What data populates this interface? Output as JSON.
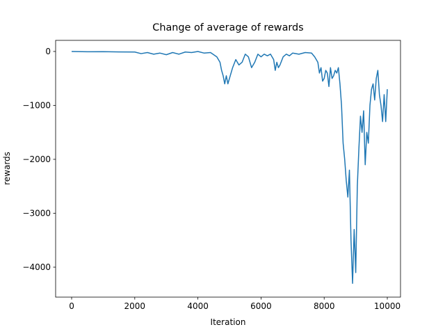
{
  "chart_data": {
    "type": "line",
    "title": "Change of average of rewards",
    "xlabel": "Iteration",
    "ylabel": "rewards",
    "x": [
      0,
      500,
      1000,
      1500,
      2000,
      2200,
      2400,
      2600,
      2800,
      3000,
      3200,
      3400,
      3600,
      3800,
      4000,
      4200,
      4400,
      4500,
      4600,
      4700,
      4750,
      4800,
      4850,
      4900,
      4950,
      5000,
      5100,
      5200,
      5300,
      5400,
      5500,
      5600,
      5700,
      5800,
      5900,
      6000,
      6100,
      6200,
      6300,
      6400,
      6450,
      6500,
      6550,
      6600,
      6700,
      6800,
      6900,
      7000,
      7200,
      7400,
      7600,
      7700,
      7800,
      7850,
      7900,
      7950,
      8000,
      8050,
      8100,
      8150,
      8200,
      8250,
      8300,
      8350,
      8400,
      8450,
      8500,
      8550,
      8600,
      8650,
      8700,
      8750,
      8800,
      8850,
      8900,
      8950,
      9000,
      9050,
      9100,
      9150,
      9200,
      9250,
      9300,
      9350,
      9400,
      9450,
      9500,
      9550,
      9600,
      9650,
      9700,
      9750,
      9800,
      9850,
      9900,
      9950,
      10000
    ],
    "series": [
      {
        "name": "rewards",
        "color": "#1f77b4",
        "values": [
          0,
          -5,
          -3,
          -8,
          -10,
          -40,
          -20,
          -50,
          -30,
          -60,
          -20,
          -50,
          -10,
          -20,
          0,
          -30,
          -20,
          -60,
          -100,
          -200,
          -350,
          -450,
          -600,
          -450,
          -600,
          -500,
          -300,
          -150,
          -250,
          -200,
          -50,
          -100,
          -300,
          -200,
          -50,
          -100,
          -50,
          -80,
          -50,
          -150,
          -350,
          -200,
          -300,
          -250,
          -100,
          -50,
          -80,
          -30,
          -50,
          -20,
          -30,
          -100,
          -200,
          -400,
          -300,
          -550,
          -500,
          -350,
          -400,
          -650,
          -300,
          -500,
          -450,
          -350,
          -400,
          -300,
          -600,
          -1000,
          -1700,
          -2000,
          -2400,
          -2700,
          -2200,
          -3500,
          -4300,
          -3300,
          -4100,
          -2500,
          -1800,
          -1200,
          -1500,
          -1100,
          -2100,
          -1500,
          -1700,
          -1000,
          -700,
          -600,
          -900,
          -500,
          -350,
          -800,
          -1000,
          -1300,
          -800,
          -1300,
          -700
        ]
      }
    ],
    "xlim": [
      -507,
      10418
    ],
    "ylim": [
      -4555,
      206
    ],
    "xticks": [
      0,
      2000,
      4000,
      6000,
      8000,
      10000
    ],
    "yticks": [
      0,
      {
        "value": -1000,
        "label": "−1000"
      },
      {
        "value": -2000,
        "label": "−2000"
      },
      {
        "value": -3000,
        "label": "−3000"
      },
      {
        "value": -4000,
        "label": "−4000"
      }
    ]
  }
}
